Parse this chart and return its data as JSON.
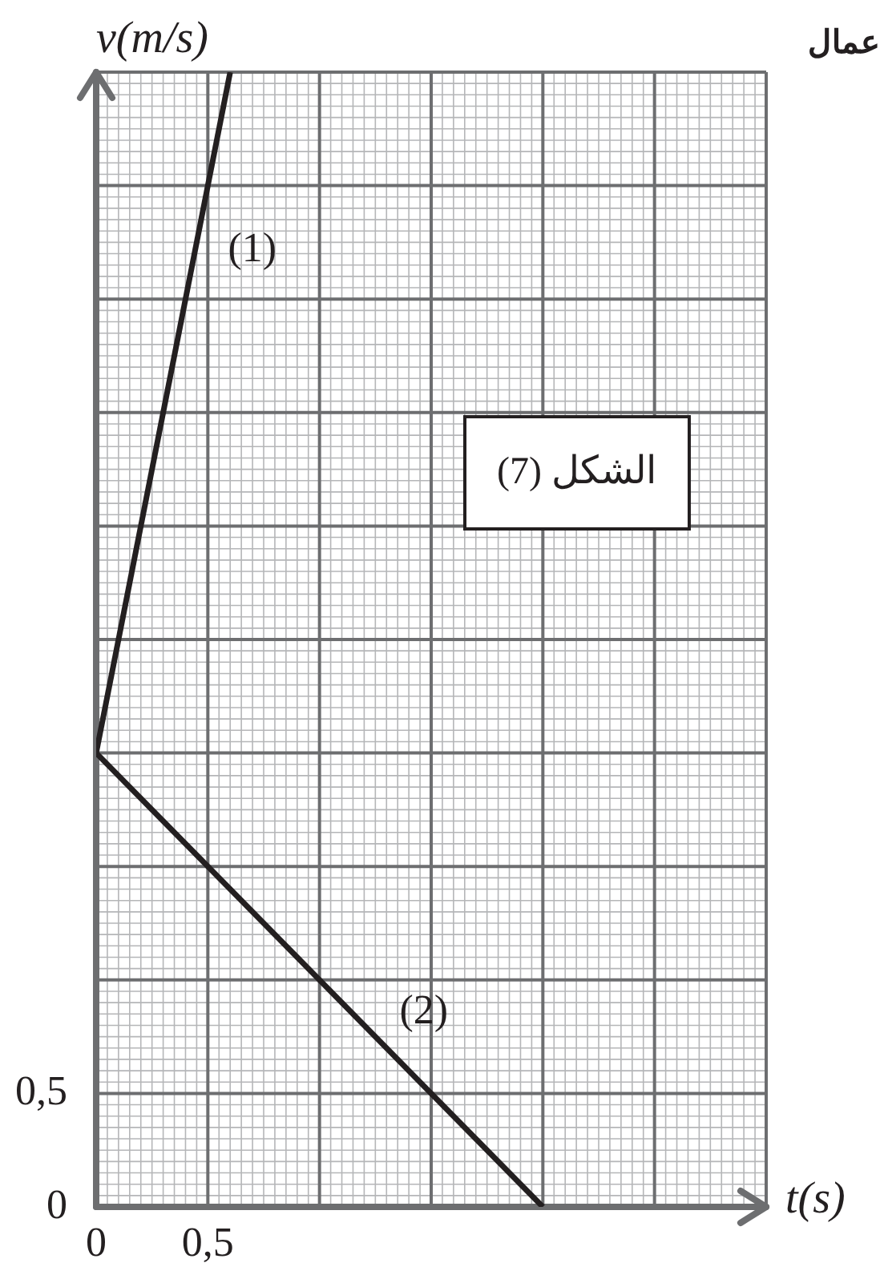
{
  "chart_data": {
    "type": "line",
    "xlabel": "t(s)",
    "ylabel": "v(m/s)",
    "annotations": [
      "الشكل (7)",
      "عمال"
    ],
    "series": [
      {
        "name": "(1)",
        "color": "#231f20",
        "x": [
          0,
          0.6
        ],
        "values": [
          2,
          5
        ]
      },
      {
        "name": "(2)",
        "color": "#231f20",
        "x": [
          0,
          2
        ],
        "values": [
          2,
          0
        ]
      }
    ],
    "xlim": [
      0,
      3
    ],
    "ylim": [
      0,
      5
    ],
    "xticks": [
      {
        "value": 0,
        "label": "0"
      },
      {
        "value": 0.5,
        "label": "0,5"
      },
      {
        "value": 1,
        "label": null
      },
      {
        "value": 1.5,
        "label": null
      },
      {
        "value": 2,
        "label": null
      },
      {
        "value": 2.5,
        "label": null
      },
      {
        "value": 3,
        "label": null
      }
    ],
    "yticks": [
      0,
      {
        "value": 0.5,
        "label": "0,5"
      },
      {
        "value": 1,
        "label": null
      },
      {
        "value": 1.5,
        "label": null
      },
      {
        "value": 2,
        "label": null
      },
      {
        "value": 2.5,
        "label": null
      },
      {
        "value": 3,
        "label": null
      },
      {
        "value": 3.5,
        "label": null
      },
      {
        "value": 4,
        "label": null
      },
      {
        "value": 4.5,
        "label": null
      },
      {
        "value": 5,
        "label": null
      }
    ],
    "grid": true,
    "legend": false,
    "marker": "none",
    "line_style": "solid"
  }
}
